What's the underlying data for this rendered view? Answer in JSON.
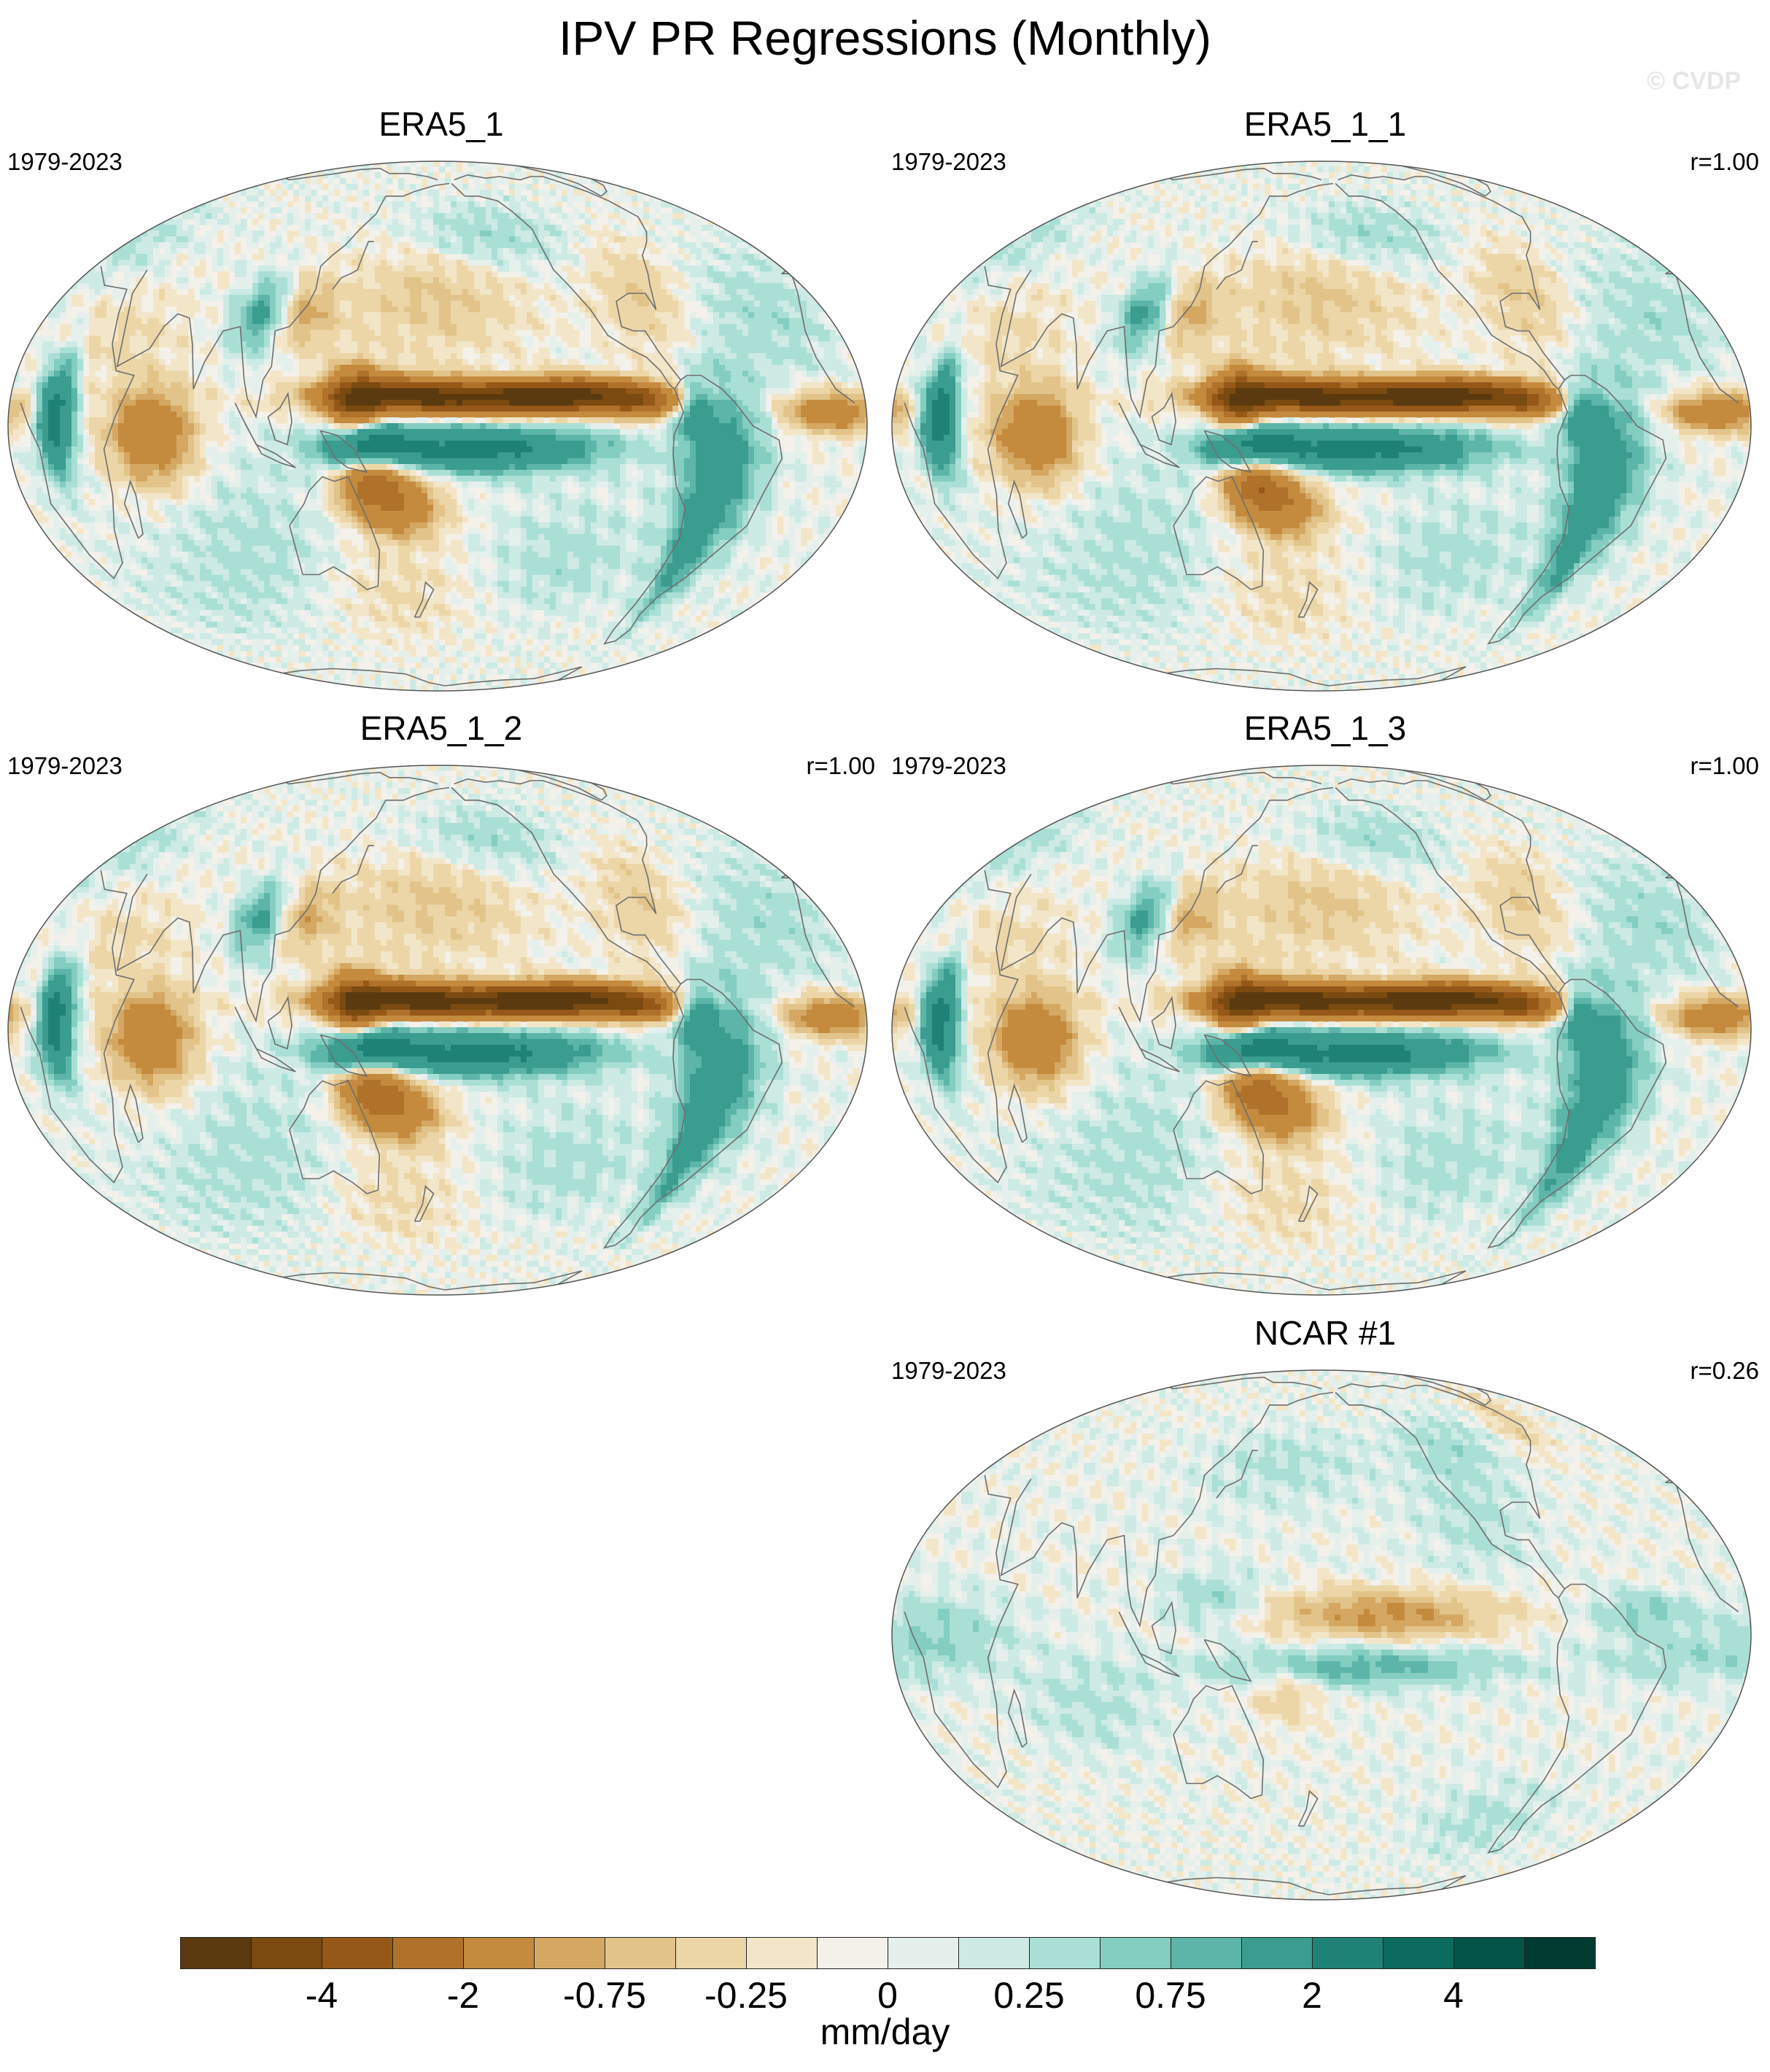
{
  "title": "IPV PR Regressions (Monthly)",
  "watermark": "© CVDP",
  "panels": [
    {
      "title": "ERA5_1",
      "period": "1979-2023",
      "corr": "",
      "amp": 1.0,
      "variant": 0
    },
    {
      "title": "ERA5_1_1",
      "period": "1979-2023",
      "corr": "r=1.00",
      "amp": 1.0,
      "variant": 1
    },
    {
      "title": "ERA5_1_2",
      "period": "1979-2023",
      "corr": "r=1.00",
      "amp": 1.0,
      "variant": 2
    },
    {
      "title": "ERA5_1_3",
      "period": "1979-2023",
      "corr": "r=1.00",
      "amp": 1.0,
      "variant": 3
    },
    {
      "title": "NCAR #1",
      "period": "1979-2023",
      "corr": "r=0.26",
      "amp": 0.3,
      "variant": 4
    }
  ],
  "colorbar": {
    "units": "mm/day",
    "colors": [
      "#5b3a0f",
      "#7a4a10",
      "#965818",
      "#b0722a",
      "#c48a3e",
      "#d4a862",
      "#e2c48a",
      "#ecd6a8",
      "#f3e6c8",
      "#f4f1eb",
      "#e5f0ed",
      "#cdeae4",
      "#aadfd6",
      "#84cdc1",
      "#5cb5a8",
      "#3b9c90",
      "#1f8276",
      "#0b6b5e",
      "#045447",
      "#003c32"
    ],
    "tick_labels": [
      "-4",
      "-2",
      "-0.75",
      "-0.25",
      "0",
      "0.25",
      "0.75",
      "2",
      "4"
    ]
  }
}
